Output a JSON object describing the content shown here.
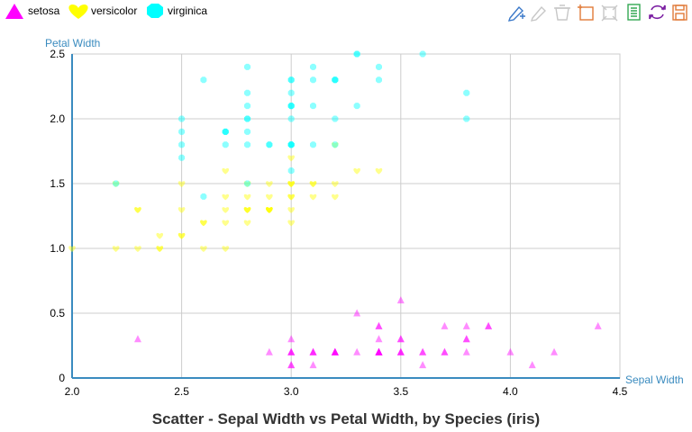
{
  "toolbar": {
    "tools": [
      {
        "name": "draw-line-icon",
        "color": "#3a78c9"
      },
      {
        "name": "pencil-icon",
        "color": "#c7c7c7"
      },
      {
        "name": "eraser-icon",
        "color": "#c7c7c7"
      },
      {
        "name": "select-rect-icon",
        "color": "#e07b39"
      },
      {
        "name": "select-area-icon",
        "color": "#c7c7c7"
      },
      {
        "name": "data-view-icon",
        "color": "#34a853"
      },
      {
        "name": "refresh-icon",
        "color": "#7b1fa2"
      },
      {
        "name": "save-icon",
        "color": "#e07b39"
      }
    ]
  },
  "chart_data": {
    "type": "scatter",
    "title": "Scatter - Sepal Width vs Petal Width, by Species (iris)",
    "xlabel": "Sepal Width",
    "ylabel": "Petal Width",
    "xlim": [
      2.0,
      4.5
    ],
    "ylim": [
      0,
      2.5
    ],
    "xticks": [
      "2.0",
      "2.5",
      "3.0",
      "3.5",
      "4.0",
      "4.5"
    ],
    "yticks": [
      "0",
      "0.5",
      "1.0",
      "1.5",
      "2.0",
      "2.5"
    ],
    "xtick_values": [
      2.0,
      2.5,
      3.0,
      3.5,
      4.0,
      4.5
    ],
    "ytick_values": [
      0,
      0.5,
      1.0,
      1.5,
      2.0,
      2.5
    ],
    "grid": true,
    "legend_position": "top-left",
    "series": [
      {
        "name": "setosa",
        "color": "#ff00ff",
        "marker": "triangle",
        "x": [
          3.5,
          3.0,
          3.2,
          3.1,
          3.6,
          3.9,
          3.4,
          3.4,
          2.9,
          3.1,
          3.7,
          3.4,
          3.0,
          3.0,
          4.0,
          4.4,
          3.9,
          3.5,
          3.8,
          3.8,
          3.4,
          3.7,
          3.6,
          3.3,
          3.4,
          3.0,
          3.4,
          3.5,
          3.4,
          3.2,
          3.1,
          3.4,
          4.1,
          4.2,
          3.1,
          3.2,
          3.5,
          3.6,
          3.0,
          3.4,
          3.5,
          2.3,
          3.2,
          3.5,
          3.8,
          3.0,
          3.8,
          3.2,
          3.7,
          3.3
        ],
        "y": [
          0.2,
          0.2,
          0.2,
          0.2,
          0.2,
          0.4,
          0.3,
          0.2,
          0.2,
          0.1,
          0.2,
          0.2,
          0.1,
          0.1,
          0.2,
          0.4,
          0.4,
          0.3,
          0.3,
          0.3,
          0.2,
          0.4,
          0.2,
          0.5,
          0.2,
          0.2,
          0.4,
          0.2,
          0.2,
          0.2,
          0.2,
          0.4,
          0.1,
          0.2,
          0.2,
          0.2,
          0.2,
          0.1,
          0.2,
          0.2,
          0.3,
          0.3,
          0.2,
          0.6,
          0.4,
          0.3,
          0.2,
          0.2,
          0.2,
          0.2
        ]
      },
      {
        "name": "versicolor",
        "color": "#ffff00",
        "marker": "heart",
        "x": [
          3.2,
          3.2,
          3.1,
          2.3,
          2.8,
          2.8,
          3.3,
          2.4,
          2.9,
          2.7,
          2.0,
          3.0,
          2.2,
          2.9,
          2.9,
          3.1,
          3.0,
          2.7,
          2.2,
          2.5,
          3.2,
          2.8,
          2.5,
          2.8,
          2.9,
          3.0,
          2.8,
          3.0,
          2.9,
          2.6,
          2.4,
          2.4,
          2.7,
          2.7,
          3.0,
          3.4,
          3.1,
          2.3,
          3.0,
          2.5,
          2.6,
          3.0,
          2.6,
          2.3,
          2.7,
          3.0,
          2.9,
          2.9,
          2.5,
          2.8
        ],
        "y": [
          1.4,
          1.5,
          1.5,
          1.3,
          1.5,
          1.3,
          1.6,
          1.0,
          1.3,
          1.4,
          1.0,
          1.5,
          1.0,
          1.4,
          1.3,
          1.4,
          1.5,
          1.0,
          1.5,
          1.1,
          1.8,
          1.3,
          1.5,
          1.2,
          1.3,
          1.4,
          1.4,
          1.7,
          1.5,
          1.0,
          1.1,
          1.0,
          1.2,
          1.6,
          1.5,
          1.6,
          1.5,
          1.3,
          1.3,
          1.3,
          1.2,
          1.4,
          1.2,
          1.0,
          1.3,
          1.2,
          1.3,
          1.3,
          1.1,
          1.3
        ]
      },
      {
        "name": "virginica",
        "color": "#00ffff",
        "marker": "octagon",
        "x": [
          3.3,
          2.7,
          3.0,
          2.9,
          3.0,
          3.0,
          2.5,
          2.9,
          2.5,
          3.6,
          3.2,
          2.7,
          3.0,
          2.5,
          2.8,
          3.2,
          3.0,
          3.8,
          2.6,
          2.2,
          3.2,
          2.8,
          2.8,
          2.7,
          3.3,
          3.2,
          2.8,
          3.0,
          2.8,
          3.0,
          2.8,
          3.8,
          2.8,
          2.8,
          2.6,
          3.0,
          3.4,
          3.1,
          3.0,
          3.1,
          3.1,
          3.1,
          2.7,
          3.2,
          3.3,
          3.0,
          2.5,
          3.0,
          3.4,
          3.0
        ],
        "y": [
          2.5,
          1.9,
          2.1,
          1.8,
          2.2,
          2.1,
          1.7,
          1.8,
          1.8,
          2.5,
          2.0,
          1.9,
          2.1,
          2.0,
          2.4,
          2.3,
          1.8,
          2.2,
          2.3,
          1.5,
          2.3,
          2.0,
          2.0,
          1.8,
          2.1,
          1.8,
          1.8,
          1.8,
          2.1,
          1.6,
          1.9,
          2.0,
          2.2,
          1.5,
          1.4,
          2.3,
          2.4,
          1.8,
          1.8,
          2.1,
          2.4,
          2.3,
          1.9,
          2.3,
          2.5,
          2.3,
          1.9,
          2.0,
          2.3,
          1.8
        ]
      }
    ]
  }
}
